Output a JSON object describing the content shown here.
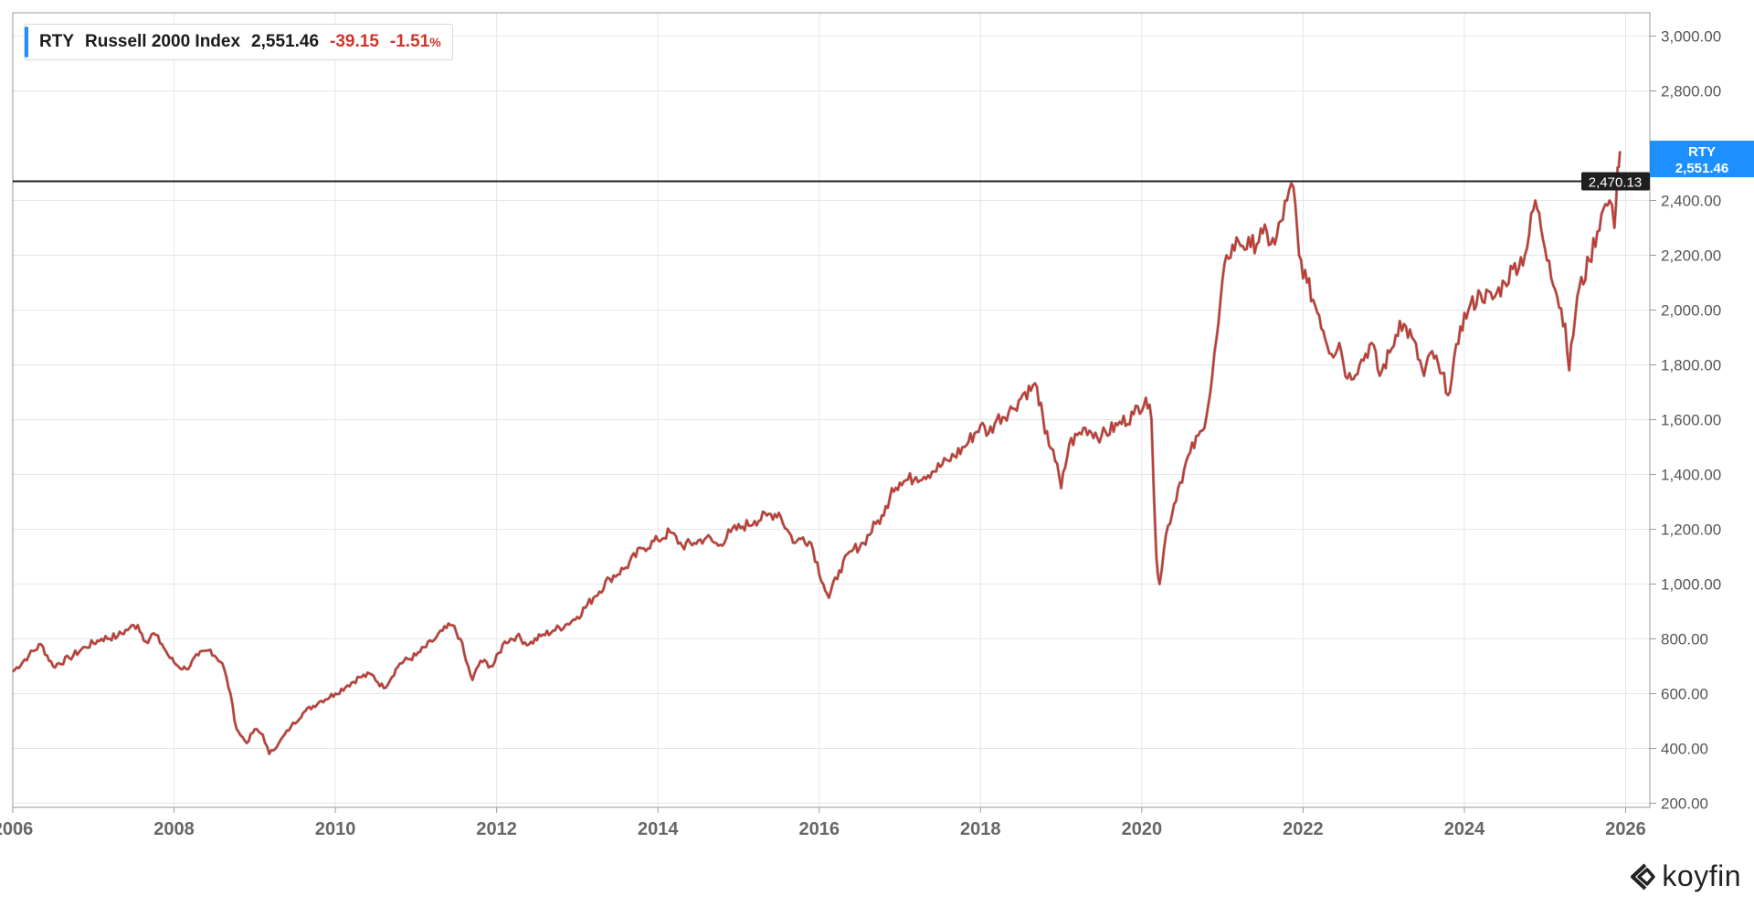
{
  "legend": {
    "ticker": "RTY",
    "name": "Russell 2000 Index",
    "price": "2,551.46",
    "change": "-39.15",
    "change_pct": "-1.51",
    "pct_sign": "%"
  },
  "crosshair": {
    "value": 2470.13,
    "label": "2,470.13"
  },
  "price_tag": {
    "ticker": "RTY",
    "price": "2,551.46",
    "value": 2551.46
  },
  "brand": {
    "name": "koyfin"
  },
  "colors": {
    "line": "#c8362d",
    "accent": "#1e8fff",
    "grid": "#e6e6e6",
    "axis": "#555555",
    "crosshair": "#222222"
  },
  "chart_data": {
    "type": "line",
    "title": "RTY Russell 2000 Index",
    "xlabel": "",
    "ylabel": "",
    "ylim": [
      185,
      3085
    ],
    "xlim": [
      2006.0,
      2026.3
    ],
    "x_ticks": [
      {
        "value": 2006,
        "label": "2006"
      },
      {
        "value": 2008,
        "label": "2008"
      },
      {
        "value": 2010,
        "label": "2010"
      },
      {
        "value": 2012,
        "label": "2012"
      },
      {
        "value": 2014,
        "label": "2014"
      },
      {
        "value": 2016,
        "label": "2016"
      },
      {
        "value": 2018,
        "label": "2018"
      },
      {
        "value": 2020,
        "label": "2020"
      },
      {
        "value": 2022,
        "label": "2022"
      },
      {
        "value": 2024,
        "label": "2024"
      },
      {
        "value": 2026,
        "label": "2026"
      }
    ],
    "y_ticks": [
      {
        "value": 200,
        "label": "200.00"
      },
      {
        "value": 400,
        "label": "400.00"
      },
      {
        "value": 600,
        "label": "600.00"
      },
      {
        "value": 800,
        "label": "800.00"
      },
      {
        "value": 1000,
        "label": "1,000.00"
      },
      {
        "value": 1200,
        "label": "1,200.00"
      },
      {
        "value": 1400,
        "label": "1,400.00"
      },
      {
        "value": 1600,
        "label": "1,600.00"
      },
      {
        "value": 1800,
        "label": "1,800.00"
      },
      {
        "value": 2000,
        "label": "2,000.00"
      },
      {
        "value": 2200,
        "label": "2,200.00"
      },
      {
        "value": 2400,
        "label": "2,400.00"
      },
      {
        "value": 2800,
        "label": "2,800.00"
      },
      {
        "value": 3000,
        "label": "3,000.00"
      }
    ],
    "series": [
      {
        "name": "RTY",
        "x": [
          2006.0,
          2006.2,
          2006.35,
          2006.5,
          2006.7,
          2006.9,
          2007.1,
          2007.3,
          2007.45,
          2007.55,
          2007.65,
          2007.75,
          2007.85,
          2007.95,
          2008.05,
          2008.15,
          2008.3,
          2008.45,
          2008.6,
          2008.7,
          2008.75,
          2008.8,
          2008.9,
          2009.0,
          2009.1,
          2009.18,
          2009.3,
          2009.45,
          2009.6,
          2009.8,
          2010.0,
          2010.15,
          2010.3,
          2010.45,
          2010.6,
          2010.8,
          2011.0,
          2011.2,
          2011.33,
          2011.45,
          2011.55,
          2011.62,
          2011.7,
          2011.8,
          2011.95,
          2012.1,
          2012.25,
          2012.4,
          2012.55,
          2012.7,
          2012.85,
          2013.0,
          2013.2,
          2013.4,
          2013.6,
          2013.8,
          2014.0,
          2014.15,
          2014.3,
          2014.45,
          2014.6,
          2014.75,
          2014.9,
          2015.05,
          2015.2,
          2015.35,
          2015.5,
          2015.6,
          2015.7,
          2015.8,
          2015.9,
          2016.05,
          2016.12,
          2016.25,
          2016.4,
          2016.55,
          2016.7,
          2016.8,
          2016.9,
          2017.0,
          2017.2,
          2017.4,
          2017.6,
          2017.8,
          2018.0,
          2018.1,
          2018.2,
          2018.4,
          2018.55,
          2018.7,
          2018.8,
          2018.9,
          2019.0,
          2019.1,
          2019.3,
          2019.5,
          2019.7,
          2019.9,
          2020.05,
          2020.12,
          2020.18,
          2020.22,
          2020.3,
          2020.45,
          2020.6,
          2020.75,
          2020.85,
          2020.95,
          2021.05,
          2021.2,
          2021.35,
          2021.5,
          2021.65,
          2021.8,
          2021.88,
          2021.95,
          2022.05,
          2022.2,
          2022.35,
          2022.45,
          2022.55,
          2022.7,
          2022.85,
          2022.95,
          2023.1,
          2023.2,
          2023.35,
          2023.5,
          2023.6,
          2023.7,
          2023.82,
          2023.95,
          2024.05,
          2024.2,
          2024.35,
          2024.5,
          2024.6,
          2024.75,
          2024.88,
          2024.95,
          2025.05,
          2025.15,
          2025.25,
          2025.3,
          2025.4,
          2025.55,
          2025.7,
          2025.8,
          2025.86,
          2025.9,
          2025.93
        ],
        "values": [
          680,
          740,
          780,
          700,
          730,
          770,
          800,
          810,
          840,
          850,
          790,
          820,
          780,
          730,
          700,
          690,
          740,
          760,
          710,
          600,
          500,
          460,
          420,
          470,
          450,
          380,
          420,
          480,
          530,
          570,
          600,
          630,
          660,
          670,
          620,
          710,
          740,
          790,
          830,
          850,
          800,
          720,
          650,
          720,
          700,
          790,
          810,
          780,
          810,
          830,
          850,
          880,
          950,
          1020,
          1060,
          1130,
          1160,
          1190,
          1140,
          1150,
          1170,
          1140,
          1190,
          1210,
          1230,
          1250,
          1260,
          1200,
          1150,
          1170,
          1150,
          1000,
          950,
          1050,
          1120,
          1150,
          1220,
          1250,
          1350,
          1370,
          1390,
          1410,
          1450,
          1500,
          1580,
          1550,
          1600,
          1640,
          1700,
          1720,
          1550,
          1490,
          1350,
          1510,
          1570,
          1540,
          1580,
          1620,
          1680,
          1600,
          1100,
          1000,
          1180,
          1350,
          1480,
          1560,
          1700,
          1950,
          2200,
          2250,
          2230,
          2280,
          2240,
          2400,
          2450,
          2200,
          2100,
          1980,
          1840,
          1880,
          1750,
          1800,
          1880,
          1760,
          1860,
          1960,
          1900,
          1760,
          1850,
          1770,
          1700,
          1940,
          2000,
          2060,
          2040,
          2100,
          2150,
          2200,
          2400,
          2300,
          2180,
          2050,
          1950,
          1780,
          2050,
          2180,
          2350,
          2400,
          2300,
          2520,
          2580
        ]
      }
    ]
  }
}
